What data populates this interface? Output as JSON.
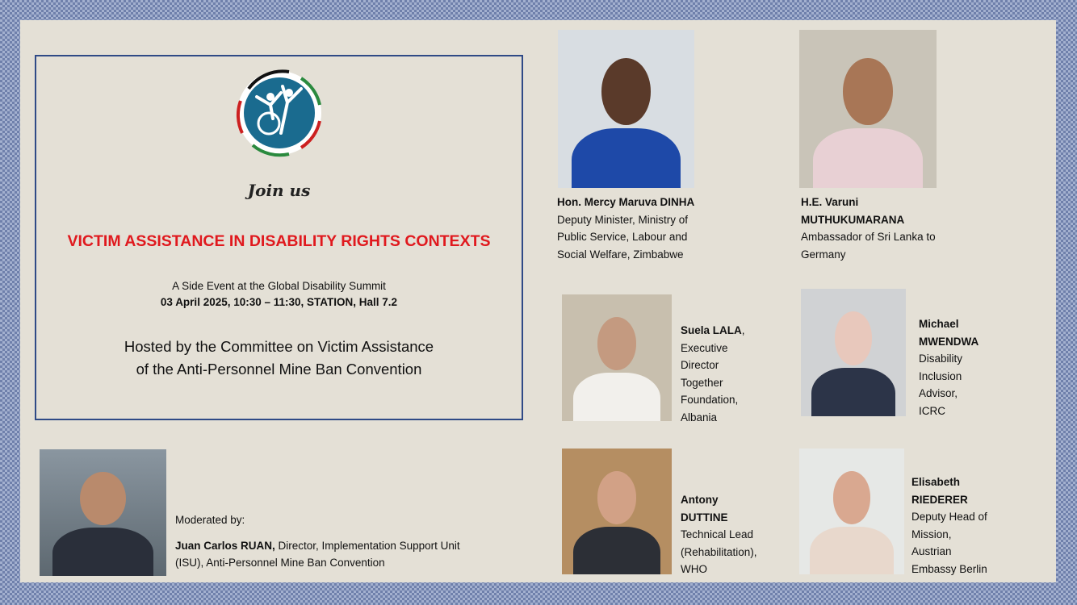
{
  "logo": {
    "icon": "disability-inclusion-logo",
    "colors": [
      "#1a6b8f",
      "#111111",
      "#2a8a3e",
      "#cc2020"
    ]
  },
  "event": {
    "join": "Join us",
    "title": "VICTIM ASSISTANCE IN DISABILITY RIGHTS CONTEXTS",
    "subtitle": "A Side Event at the Global Disability Summit",
    "datetime": "03 April 2025, 10:30 – 11:30, STATION, Hall 7.2",
    "hosted_line1": "Hosted by the Committee on Victim Assistance",
    "hosted_line2": "of the Anti-Personnel Mine Ban Convention"
  },
  "moderator": {
    "label": "Moderated by:",
    "name": "Juan Carlos RUAN,",
    "role_line1": " Director, Implementation Support Unit",
    "role_line2": "(ISU), Anti-Personnel Mine Ban Convention"
  },
  "speakers": [
    {
      "name_lines": [
        "Hon. Mercy Maruva DINHA"
      ],
      "role_lines": [
        "Deputy Minister, Ministry of",
        "Public Service, Labour and",
        "Social Welfare,  Zimbabwe"
      ]
    },
    {
      "name_lines": [
        "H.E. Varuni",
        "MUTHUKUMARANA"
      ],
      "role_lines": [
        "Ambassador of Sri Lanka to",
        "Germany"
      ]
    },
    {
      "name_lines": [
        "Suela LALA"
      ],
      "suffix": ",",
      "role_lines": [
        "Executive",
        "Director",
        "Together",
        "Foundation,",
        "Albania"
      ]
    },
    {
      "name_lines": [
        "Michael",
        "MWENDWA"
      ],
      "role_lines": [
        "Disability",
        "Inclusion",
        "Advisor,",
        "ICRC"
      ]
    },
    {
      "name_lines": [
        "Antony",
        "DUTTINE"
      ],
      "role_lines": [
        "Technical Lead",
        "(Rehabilitation),",
        "WHO"
      ]
    },
    {
      "name_lines": [
        "Elisabeth",
        "RIEDERER"
      ],
      "role_lines": [
        "Deputy Head of",
        "Mission,",
        "Austrian",
        "Embassy Berlin"
      ]
    }
  ]
}
